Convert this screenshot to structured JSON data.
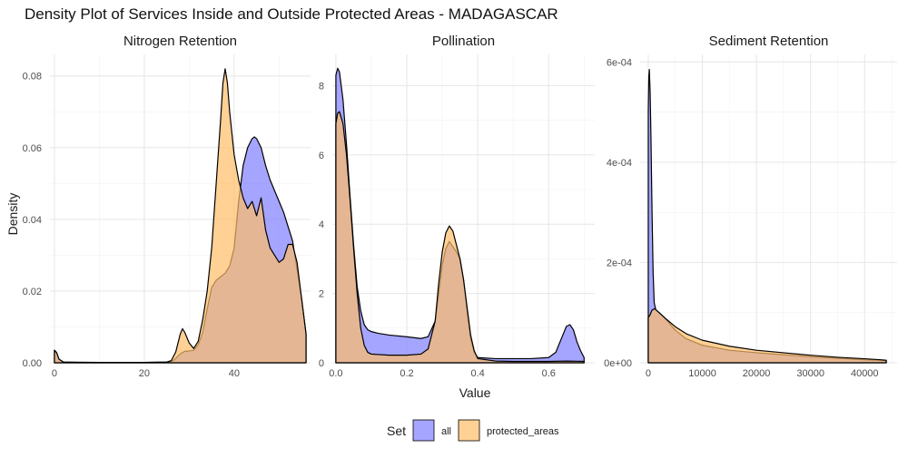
{
  "title": "Density Plot of Services Inside and Outside Protected Areas - MADAGASCAR",
  "colors": {
    "all": "#7f7fff",
    "protected_areas": "#ffbe66",
    "outline": "#000000"
  },
  "legend": {
    "title": "Set",
    "items": [
      {
        "key": "all",
        "label": "all"
      },
      {
        "key": "protected_areas",
        "label": "protected_areas"
      }
    ]
  },
  "chart_data": {
    "type": "area",
    "xlabel": "Value",
    "ylabel": "Density",
    "legend_position": "bottom",
    "grid": true,
    "facets": [
      {
        "title": "Nitrogen Retention",
        "xlim": [
          -1,
          57
        ],
        "ylim": [
          0,
          0.086
        ],
        "xticks": [
          0,
          20,
          40
        ],
        "yticks": [
          0,
          0.02,
          0.04,
          0.06,
          0.08
        ],
        "ytick_labels": [
          "0.00",
          "0.02",
          "0.04",
          "0.06",
          "0.08"
        ],
        "series": [
          {
            "key": "all",
            "points": [
              [
                0,
                0.0035
              ],
              [
                0.5,
                0.0028
              ],
              [
                1,
                0.001
              ],
              [
                2,
                0.0002
              ],
              [
                5,
                0.0001
              ],
              [
                10,
                0.0001
              ],
              [
                20,
                0.0001
              ],
              [
                25,
                0.0002
              ],
              [
                26,
                0.0003
              ],
              [
                27,
                0.0012
              ],
              [
                28,
                0.0025
              ],
              [
                29,
                0.0032
              ],
              [
                30,
                0.0033
              ],
              [
                31,
                0.0035
              ],
              [
                32,
                0.005
              ],
              [
                33,
                0.0085
              ],
              [
                34,
                0.015
              ],
              [
                35,
                0.021
              ],
              [
                36,
                0.023
              ],
              [
                37,
                0.024
              ],
              [
                38,
                0.025
              ],
              [
                39,
                0.027
              ],
              [
                40,
                0.032
              ],
              [
                41,
                0.045
              ],
              [
                42,
                0.055
              ],
              [
                43,
                0.06
              ],
              [
                44,
                0.0625
              ],
              [
                44.5,
                0.063
              ],
              [
                45,
                0.0625
              ],
              [
                46,
                0.06
              ],
              [
                47,
                0.055
              ],
              [
                48,
                0.051
              ],
              [
                49,
                0.048
              ],
              [
                50,
                0.045
              ],
              [
                51,
                0.042
              ],
              [
                52,
                0.038
              ],
              [
                53,
                0.034
              ],
              [
                54,
                0.026
              ],
              [
                55,
                0.018
              ],
              [
                55.5,
                0.013
              ],
              [
                56,
                0.008
              ]
            ]
          },
          {
            "key": "protected_areas",
            "points": [
              [
                0,
                0.0035
              ],
              [
                0.5,
                0.0028
              ],
              [
                1,
                0.001
              ],
              [
                2,
                0.0002
              ],
              [
                10,
                0.0001
              ],
              [
                20,
                0.0001
              ],
              [
                25,
                0.0002
              ],
              [
                26,
                0.0006
              ],
              [
                27,
                0.003
              ],
              [
                28,
                0.008
              ],
              [
                28.5,
                0.0095
              ],
              [
                29,
                0.0085
              ],
              [
                30,
                0.0055
              ],
              [
                31,
                0.004
              ],
              [
                32,
                0.006
              ],
              [
                33,
                0.012
              ],
              [
                34,
                0.02
              ],
              [
                35,
                0.032
              ],
              [
                36,
                0.05
              ],
              [
                37,
                0.068
              ],
              [
                37.5,
                0.078
              ],
              [
                38,
                0.082
              ],
              [
                38.5,
                0.078
              ],
              [
                39,
                0.07
              ],
              [
                40,
                0.058
              ],
              [
                41,
                0.051
              ],
              [
                42,
                0.046
              ],
              [
                43,
                0.043
              ],
              [
                44,
                0.045
              ],
              [
                45,
                0.041
              ],
              [
                46,
                0.046
              ],
              [
                47,
                0.037
              ],
              [
                48,
                0.032
              ],
              [
                49,
                0.03
              ],
              [
                50,
                0.028
              ],
              [
                51,
                0.029
              ],
              [
                52,
                0.033
              ],
              [
                53,
                0.033
              ],
              [
                54,
                0.028
              ],
              [
                55,
                0.018
              ],
              [
                55.5,
                0.013
              ],
              [
                56,
                0.008
              ]
            ]
          }
        ]
      },
      {
        "title": "Pollination",
        "xlim": [
          -0.01,
          0.73
        ],
        "ylim": [
          0,
          8.9
        ],
        "xticks": [
          0,
          0.2,
          0.4,
          0.6
        ],
        "yticks": [
          0,
          2,
          4,
          6,
          8
        ],
        "xtick_labels": [
          "0.0",
          "0.2",
          "0.4",
          "0.6"
        ],
        "ytick_labels": [
          "0",
          "2",
          "4",
          "6",
          "8"
        ],
        "series": [
          {
            "key": "all",
            "points": [
              [
                0,
                8.3
              ],
              [
                0.005,
                8.5
              ],
              [
                0.01,
                8.4
              ],
              [
                0.02,
                7.6
              ],
              [
                0.03,
                6.3
              ],
              [
                0.04,
                4.8
              ],
              [
                0.05,
                3.4
              ],
              [
                0.06,
                2.2
              ],
              [
                0.07,
                1.5
              ],
              [
                0.08,
                1.1
              ],
              [
                0.09,
                0.95
              ],
              [
                0.1,
                0.9
              ],
              [
                0.12,
                0.85
              ],
              [
                0.15,
                0.8
              ],
              [
                0.2,
                0.75
              ],
              [
                0.24,
                0.7
              ],
              [
                0.26,
                0.75
              ],
              [
                0.28,
                1.2
              ],
              [
                0.29,
                2.0
              ],
              [
                0.3,
                2.8
              ],
              [
                0.31,
                3.3
              ],
              [
                0.32,
                3.5
              ],
              [
                0.33,
                3.35
              ],
              [
                0.34,
                3.2
              ],
              [
                0.35,
                3.0
              ],
              [
                0.36,
                2.4
              ],
              [
                0.37,
                1.5
              ],
              [
                0.38,
                0.7
              ],
              [
                0.39,
                0.3
              ],
              [
                0.4,
                0.15
              ],
              [
                0.45,
                0.12
              ],
              [
                0.5,
                0.12
              ],
              [
                0.55,
                0.12
              ],
              [
                0.6,
                0.15
              ],
              [
                0.62,
                0.3
              ],
              [
                0.64,
                0.8
              ],
              [
                0.65,
                1.05
              ],
              [
                0.66,
                1.1
              ],
              [
                0.67,
                0.95
              ],
              [
                0.68,
                0.6
              ],
              [
                0.69,
                0.35
              ],
              [
                0.7,
                0.15
              ]
            ]
          },
          {
            "key": "protected_areas",
            "points": [
              [
                0,
                6.9
              ],
              [
                0.005,
                7.2
              ],
              [
                0.01,
                7.25
              ],
              [
                0.02,
                6.9
              ],
              [
                0.03,
                6.0
              ],
              [
                0.04,
                4.7
              ],
              [
                0.05,
                3.3
              ],
              [
                0.06,
                2.0
              ],
              [
                0.07,
                1.0
              ],
              [
                0.08,
                0.5
              ],
              [
                0.09,
                0.3
              ],
              [
                0.1,
                0.25
              ],
              [
                0.15,
                0.22
              ],
              [
                0.2,
                0.22
              ],
              [
                0.24,
                0.25
              ],
              [
                0.26,
                0.4
              ],
              [
                0.28,
                1.2
              ],
              [
                0.29,
                2.3
              ],
              [
                0.3,
                3.2
              ],
              [
                0.31,
                3.75
              ],
              [
                0.32,
                3.95
              ],
              [
                0.33,
                3.8
              ],
              [
                0.34,
                3.4
              ],
              [
                0.35,
                3.0
              ],
              [
                0.36,
                2.4
              ],
              [
                0.37,
                1.6
              ],
              [
                0.38,
                0.8
              ],
              [
                0.39,
                0.35
              ],
              [
                0.4,
                0.12
              ],
              [
                0.45,
                0.05
              ],
              [
                0.5,
                0.04
              ],
              [
                0.6,
                0.04
              ],
              [
                0.65,
                0.05
              ],
              [
                0.7,
                0.04
              ]
            ]
          }
        ]
      },
      {
        "title": "Sediment Retention",
        "xlim": [
          -1500,
          46000
        ],
        "ylim": [
          0,
          0.000615
        ],
        "xticks": [
          0,
          10000,
          20000,
          30000,
          40000
        ],
        "yticks": [
          0,
          0.0002,
          0.0004,
          0.0006
        ],
        "ytick_labels": [
          "0e+00",
          "2e-04",
          "4e-04",
          "6e-04"
        ],
        "series": [
          {
            "key": "all",
            "points": [
              [
                0,
                0.0005
              ],
              [
                100,
                0.00057
              ],
              [
                200,
                0.000585
              ],
              [
                350,
                0.00054
              ],
              [
                500,
                0.00045
              ],
              [
                700,
                0.0003
              ],
              [
                900,
                0.00018
              ],
              [
                1100,
                0.00012
              ],
              [
                1400,
                0.000105
              ],
              [
                2000,
                0.0001
              ],
              [
                3000,
                9e-05
              ],
              [
                5000,
                6.5e-05
              ],
              [
                7000,
                4.8e-05
              ],
              [
                10000,
                3.5e-05
              ],
              [
                15000,
                2.5e-05
              ],
              [
                20000,
                2e-05
              ],
              [
                25000,
                1.6e-05
              ],
              [
                30000,
                1.2e-05
              ],
              [
                35000,
                9e-06
              ],
              [
                40000,
                6e-06
              ],
              [
                43000,
                5e-06
              ],
              [
                44000,
                4e-06
              ]
            ]
          },
          {
            "key": "protected_areas",
            "points": [
              [
                0,
                9e-05
              ],
              [
                300,
                9.5e-05
              ],
              [
                700,
                0.000105
              ],
              [
                1200,
                0.000108
              ],
              [
                2000,
                0.0001
              ],
              [
                3000,
                9e-05
              ],
              [
                5000,
                7.2e-05
              ],
              [
                7000,
                5.8e-05
              ],
              [
                10000,
                4.5e-05
              ],
              [
                15000,
                3.3e-05
              ],
              [
                20000,
                2.5e-05
              ],
              [
                25000,
                2e-05
              ],
              [
                30000,
                1.5e-05
              ],
              [
                35000,
                1.1e-05
              ],
              [
                40000,
                8e-06
              ],
              [
                43000,
                6e-06
              ],
              [
                44000,
                5e-06
              ]
            ]
          }
        ]
      }
    ]
  }
}
